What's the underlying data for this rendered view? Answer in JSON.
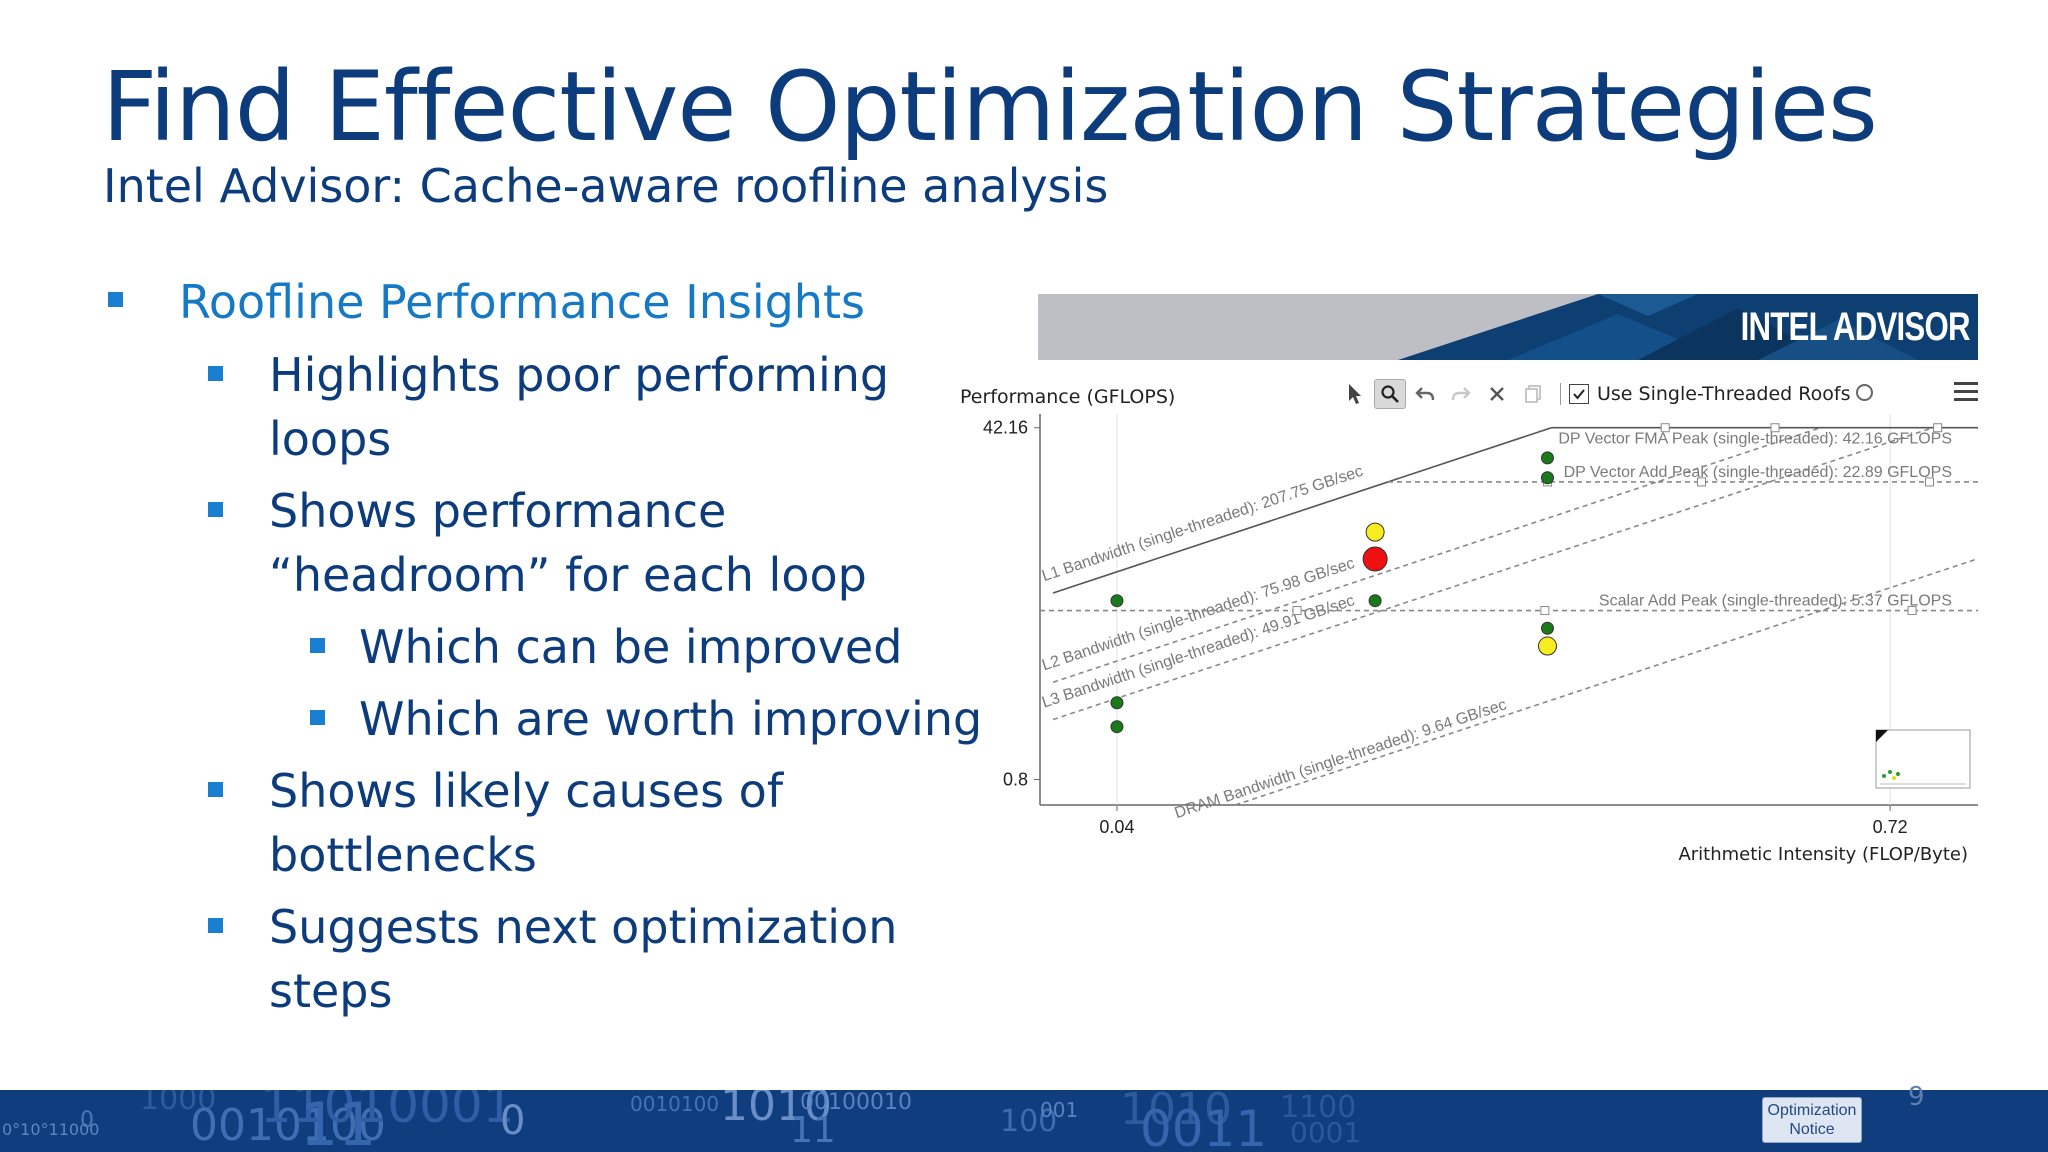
{
  "slide": {
    "title": "Find Effective Optimization Strategies",
    "subtitle": "Intel Advisor:  Cache-aware roofline analysis",
    "page_number": "9"
  },
  "bullets": [
    {
      "level": 1,
      "lines": [
        "Roofline Performance Insights"
      ]
    },
    {
      "level": 2,
      "lines": [
        "Highlights poor performing",
        "loops"
      ]
    },
    {
      "level": 2,
      "lines": [
        "Shows performance",
        "“headroom”  for each loop"
      ]
    },
    {
      "level": 3,
      "lines": [
        "Which can be improved"
      ]
    },
    {
      "level": 3,
      "lines": [
        "Which are worth improving"
      ]
    },
    {
      "level": 2,
      "lines": [
        "Shows likely causes of",
        "bottlenecks"
      ]
    },
    {
      "level": 2,
      "lines": [
        "Suggests next optimization",
        "steps"
      ]
    }
  ],
  "advisor": {
    "brand": "INTEL ADVISOR",
    "y_axis_label": "Performance (GFLOPS)",
    "x_axis_label": "Arithmetic Intensity (FLOP/Byte)",
    "toolbar": {
      "icons": [
        "pointer-icon",
        "zoom-icon",
        "undo-icon",
        "redo-icon",
        "close-icon",
        "copy-icon"
      ],
      "checkbox_label": "Use Single-Threaded Roofs",
      "checkbox_checked": true
    }
  },
  "chart_data": {
    "type": "scatter",
    "title": "",
    "xlabel": "Arithmetic Intensity (FLOP/Byte)",
    "ylabel": "Performance (GFLOPS)",
    "x_scale": "log",
    "y_scale": "log",
    "x_ticks": [
      "0.04",
      "0.72"
    ],
    "y_ticks": [
      "42.16",
      "0.8"
    ],
    "xlim": [
      0.03,
      1.0
    ],
    "ylim": [
      0.6,
      46
    ],
    "roofs": [
      {
        "label": "L1 Bandwidth (single-threaded): 207.75 GB/sec",
        "kind": "bandwidth",
        "style": "solid",
        "value": 207.75
      },
      {
        "label": "L2 Bandwidth (single-threaded): 75.98 GB/sec",
        "kind": "bandwidth",
        "style": "dashed",
        "value": 75.98
      },
      {
        "label": "L3 Bandwidth (single-threaded): 49.91 GB/sec",
        "kind": "bandwidth",
        "style": "dashed",
        "value": 49.91
      },
      {
        "label": "DRAM Bandwidth (single-threaded): 9.64 GB/sec",
        "kind": "bandwidth",
        "style": "dashed",
        "value": 9.64
      },
      {
        "label": "DP Vector FMA Peak (single-threaded): 42.16 GFLOPS",
        "kind": "compute",
        "style": "solid",
        "value": 42.16
      },
      {
        "label": "DP Vector Add Peak (single-threaded): 22.89 GFLOPS",
        "kind": "compute",
        "style": "dashed",
        "value": 22.89
      },
      {
        "label": "Scalar Add Peak (single-threaded): 5.37 GFLOPS",
        "kind": "compute",
        "style": "dashed",
        "value": 5.37
      }
    ],
    "points": [
      {
        "x": 0.04,
        "y": 6.0,
        "color": "#1a7a1a",
        "size": "small"
      },
      {
        "x": 0.04,
        "y": 1.9,
        "color": "#1a7a1a",
        "size": "small"
      },
      {
        "x": 0.04,
        "y": 1.45,
        "color": "#1a7a1a",
        "size": "small"
      },
      {
        "x": 0.105,
        "y": 13.0,
        "color": "#f7ec20",
        "size": "medium"
      },
      {
        "x": 0.105,
        "y": 9.6,
        "color": "#ee1111",
        "size": "large"
      },
      {
        "x": 0.105,
        "y": 6.0,
        "color": "#1a7a1a",
        "size": "small"
      },
      {
        "x": 0.2,
        "y": 30.0,
        "color": "#1a7a1a",
        "size": "small"
      },
      {
        "x": 0.2,
        "y": 24.0,
        "color": "#1a7a1a",
        "size": "small"
      },
      {
        "x": 0.2,
        "y": 4.4,
        "color": "#1a7a1a",
        "size": "small"
      },
      {
        "x": 0.2,
        "y": 3.6,
        "color": "#f7ec20",
        "size": "medium"
      }
    ],
    "grid": false,
    "legend": "none"
  },
  "footer": {
    "binary_fragments": [
      "0°10°11000",
      "0",
      "1000",
      "0010100",
      "11010001",
      "11",
      "0",
      "0010100",
      "1010",
      "00100010",
      "11",
      "100",
      "001",
      "1010",
      "0011",
      "1100",
      "0001"
    ],
    "optimization_notice": [
      "Optimization",
      "Notice"
    ]
  },
  "colors": {
    "title": "#0d3c7d",
    "bullet_level1": "#1679c6",
    "bullet_marker": "#1a7fd0",
    "footer_band": "#0f3d7e",
    "banner_gray": "#bdbfc4",
    "banner_blue": "#0d3f73"
  }
}
